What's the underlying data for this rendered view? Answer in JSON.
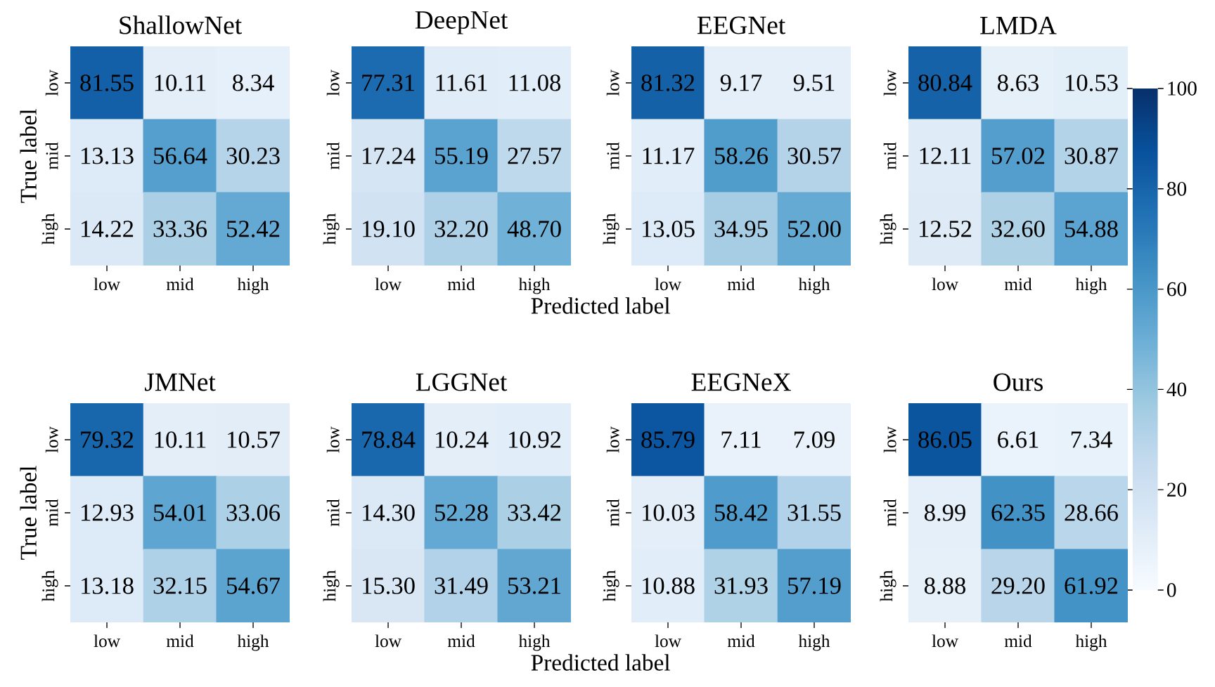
{
  "chart_data": [
    {
      "type": "heatmap",
      "title": "ShallowNet",
      "ylabel": "True label",
      "categories": [
        "low",
        "mid",
        "high"
      ],
      "y_categories": [
        "low",
        "mid",
        "high"
      ],
      "cells": [
        [
          81.55,
          10.11,
          8.34
        ],
        [
          13.13,
          56.64,
          30.23
        ],
        [
          14.22,
          33.36,
          52.42
        ]
      ],
      "cell_labels": [
        [
          "81.55",
          "10.11",
          "8.34"
        ],
        [
          "13.13",
          "56.64",
          "30.23"
        ],
        [
          "14.22",
          "33.36",
          "52.42"
        ]
      ]
    },
    {
      "type": "heatmap",
      "title": "DeepNet",
      "xlabel": "Predicted label",
      "categories": [
        "low",
        "mid",
        "high"
      ],
      "y_categories": [
        "low",
        "mid",
        "high"
      ],
      "cells": [
        [
          77.31,
          11.61,
          11.08
        ],
        [
          17.24,
          55.19,
          27.57
        ],
        [
          19.1,
          32.2,
          48.7
        ]
      ],
      "cell_labels": [
        [
          "77.31",
          "11.61",
          "11.08"
        ],
        [
          "17.24",
          "55.19",
          "27.57"
        ],
        [
          "19.10",
          "32.20",
          "48.70"
        ]
      ]
    },
    {
      "type": "heatmap",
      "title": "EEGNet",
      "categories": [
        "low",
        "mid",
        "high"
      ],
      "y_categories": [
        "low",
        "mid",
        "high"
      ],
      "cells": [
        [
          81.32,
          9.17,
          9.51
        ],
        [
          11.17,
          58.26,
          30.57
        ],
        [
          13.05,
          34.95,
          52.0
        ]
      ],
      "cell_labels": [
        [
          "81.32",
          "9.17",
          "9.51"
        ],
        [
          "11.17",
          "58.26",
          "30.57"
        ],
        [
          "13.05",
          "34.95",
          "52.00"
        ]
      ]
    },
    {
      "type": "heatmap",
      "title": "LMDA",
      "categories": [
        "low",
        "mid",
        "high"
      ],
      "y_categories": [
        "low",
        "mid",
        "high"
      ],
      "clim": [
        0,
        100
      ],
      "cticks": [
        0,
        20,
        40,
        60,
        80,
        100
      ],
      "cells": [
        [
          80.84,
          8.63,
          10.53
        ],
        [
          12.11,
          57.02,
          30.87
        ],
        [
          12.52,
          32.6,
          54.88
        ]
      ],
      "cell_labels": [
        [
          "80.84",
          "8.63",
          "10.53"
        ],
        [
          "12.11",
          "57.02",
          "30.87"
        ],
        [
          "12.52",
          "32.60",
          "54.88"
        ]
      ]
    },
    {
      "type": "heatmap",
      "title": "JMNet",
      "ylabel": "True label",
      "categories": [
        "low",
        "mid",
        "high"
      ],
      "y_categories": [
        "low",
        "mid",
        "high"
      ],
      "cells": [
        [
          79.32,
          10.11,
          10.57
        ],
        [
          12.93,
          54.01,
          33.06
        ],
        [
          13.18,
          32.15,
          54.67
        ]
      ],
      "cell_labels": [
        [
          "79.32",
          "10.11",
          "10.57"
        ],
        [
          "12.93",
          "54.01",
          "33.06"
        ],
        [
          "13.18",
          "32.15",
          "54.67"
        ]
      ]
    },
    {
      "type": "heatmap",
      "title": "LGGNet",
      "xlabel": "Predicted label",
      "categories": [
        "low",
        "mid",
        "high"
      ],
      "y_categories": [
        "low",
        "mid",
        "high"
      ],
      "cells": [
        [
          78.84,
          10.24,
          10.92
        ],
        [
          14.3,
          52.28,
          33.42
        ],
        [
          15.3,
          31.49,
          53.21
        ]
      ],
      "cell_labels": [
        [
          "78.84",
          "10.24",
          "10.92"
        ],
        [
          "14.30",
          "52.28",
          "33.42"
        ],
        [
          "15.30",
          "31.49",
          "53.21"
        ]
      ]
    },
    {
      "type": "heatmap",
      "title": "EEGNeX",
      "categories": [
        "low",
        "mid",
        "high"
      ],
      "y_categories": [
        "low",
        "mid",
        "high"
      ],
      "cells": [
        [
          85.79,
          7.11,
          7.09
        ],
        [
          10.03,
          58.42,
          31.55
        ],
        [
          10.88,
          31.93,
          57.19
        ]
      ],
      "cell_labels": [
        [
          "85.79",
          "7.11",
          "7.09"
        ],
        [
          "10.03",
          "58.42",
          "31.55"
        ],
        [
          "10.88",
          "31.93",
          "57.19"
        ]
      ]
    },
    {
      "type": "heatmap",
      "title": "Ours",
      "categories": [
        "low",
        "mid",
        "high"
      ],
      "y_categories": [
        "low",
        "mid",
        "high"
      ],
      "cells": [
        [
          86.05,
          6.61,
          7.34
        ],
        [
          8.99,
          62.35,
          28.66
        ],
        [
          8.88,
          29.2,
          61.92
        ]
      ],
      "cell_labels": [
        [
          "86.05",
          "6.61",
          "7.34"
        ],
        [
          "8.99",
          "62.35",
          "28.66"
        ],
        [
          "8.88",
          "29.20",
          "61.92"
        ]
      ]
    }
  ]
}
